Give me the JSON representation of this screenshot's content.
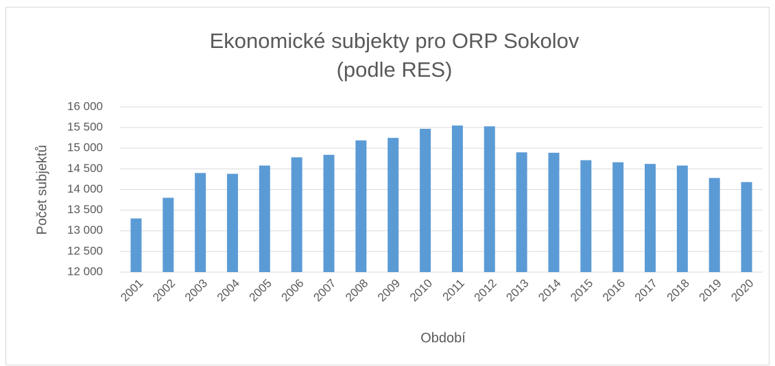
{
  "chart_data": {
    "type": "bar",
    "title": [
      "Ekonomické subjekty pro ORP Sokolov",
      "(podle RES)"
    ],
    "x_label": "Období",
    "y_label": "Počet subjektů",
    "categories": [
      "2001",
      "2002",
      "2003",
      "2004",
      "2005",
      "2006",
      "2007",
      "2008",
      "2009",
      "2010",
      "2011",
      "2012",
      "2013",
      "2014",
      "2015",
      "2016",
      "2017",
      "2018",
      "2019",
      "2020"
    ],
    "values": [
      13300,
      13800,
      14400,
      14380,
      14580,
      14780,
      14840,
      15190,
      15250,
      15470,
      15550,
      15530,
      14900,
      14890,
      14710,
      14660,
      14620,
      14580,
      14280,
      14180
    ],
    "color": "#5b9bd5",
    "ylim": [
      12000,
      16000
    ],
    "yticks": [
      {
        "value": 12000,
        "label": "12 000"
      },
      {
        "value": 12500,
        "label": "12 500"
      },
      {
        "value": 13000,
        "label": "13 000"
      },
      {
        "value": 13500,
        "label": "13 500"
      },
      {
        "value": 14000,
        "label": "14 000"
      },
      {
        "value": 14500,
        "label": "14 500"
      },
      {
        "value": 15000,
        "label": "15 000"
      },
      {
        "value": 15500,
        "label": "15 500"
      },
      {
        "value": 16000,
        "label": "16 000"
      }
    ],
    "grid": true
  }
}
